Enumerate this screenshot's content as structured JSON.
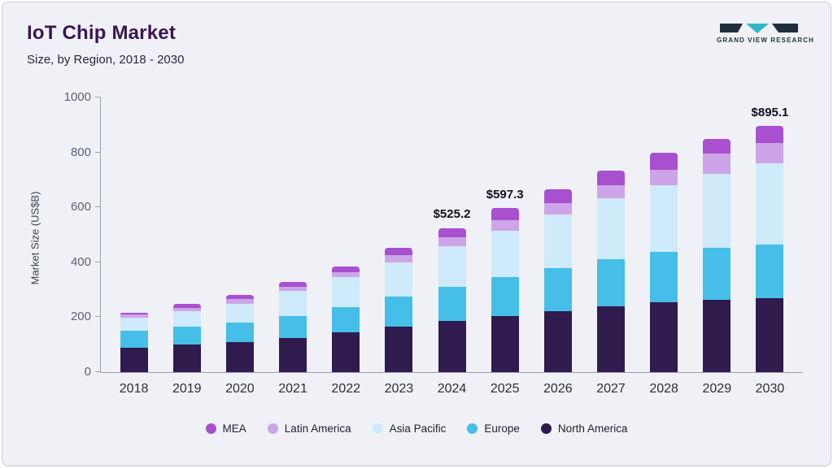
{
  "header": {
    "title": "IoT Chip Market",
    "subtitle": "Size, by Region, 2018 - 2030",
    "logo_text": "GRAND VIEW RESEARCH"
  },
  "brand": {
    "logo_navy": "#1f2f3d",
    "logo_teal": "#2fb6c9",
    "title_purple": "#3b1650"
  },
  "chart_data": {
    "type": "bar",
    "subtype": "stacked",
    "title": "IoT Chip Market Size, by Region, 2018 - 2030",
    "xlabel": "",
    "ylabel": "Market Size (US$B)",
    "ylim": [
      0,
      1000
    ],
    "yticks": [
      0,
      200,
      400,
      600,
      800,
      1000
    ],
    "grid": false,
    "legend_position": "bottom",
    "categories": [
      "2018",
      "2019",
      "2020",
      "2021",
      "2022",
      "2023",
      "2024",
      "2025",
      "2026",
      "2027",
      "2028",
      "2029",
      "2030"
    ],
    "series": [
      {
        "name": "North America",
        "color": "#2f1b4d",
        "values": [
          90,
          100,
          110,
          125,
          145,
          165,
          185,
          205,
          222,
          240,
          255,
          263,
          270
        ]
      },
      {
        "name": "Europe",
        "color": "#45bfe8",
        "values": [
          62,
          66,
          72,
          80,
          92,
          110,
          125,
          141,
          158,
          170,
          182,
          190,
          196
        ]
      },
      {
        "name": "Asia Pacific",
        "color": "#cfeafa",
        "values": [
          45,
          55,
          68,
          90,
          108,
          125,
          148,
          168,
          193,
          222,
          243,
          270,
          293
        ]
      },
      {
        "name": "Latin America",
        "color": "#cda4e8",
        "values": [
          12,
          14,
          15,
          17,
          20,
          26,
          32,
          40,
          42,
          50,
          58,
          72,
          76
        ]
      },
      {
        "name": "MEA",
        "color": "#a850cf",
        "values": [
          8,
          13,
          15,
          16,
          20,
          28,
          35.2,
          43.3,
          50,
          53,
          62,
          55,
          60.1
        ]
      }
    ],
    "annotations": [
      "",
      "",
      "",
      "",
      "",
      "",
      "$525.2",
      "$597.3",
      "",
      "",
      "",
      "",
      "$895.1"
    ],
    "annotated_totals": {
      "2024": 525.2,
      "2025": 597.3,
      "2030": 895.1
    }
  }
}
